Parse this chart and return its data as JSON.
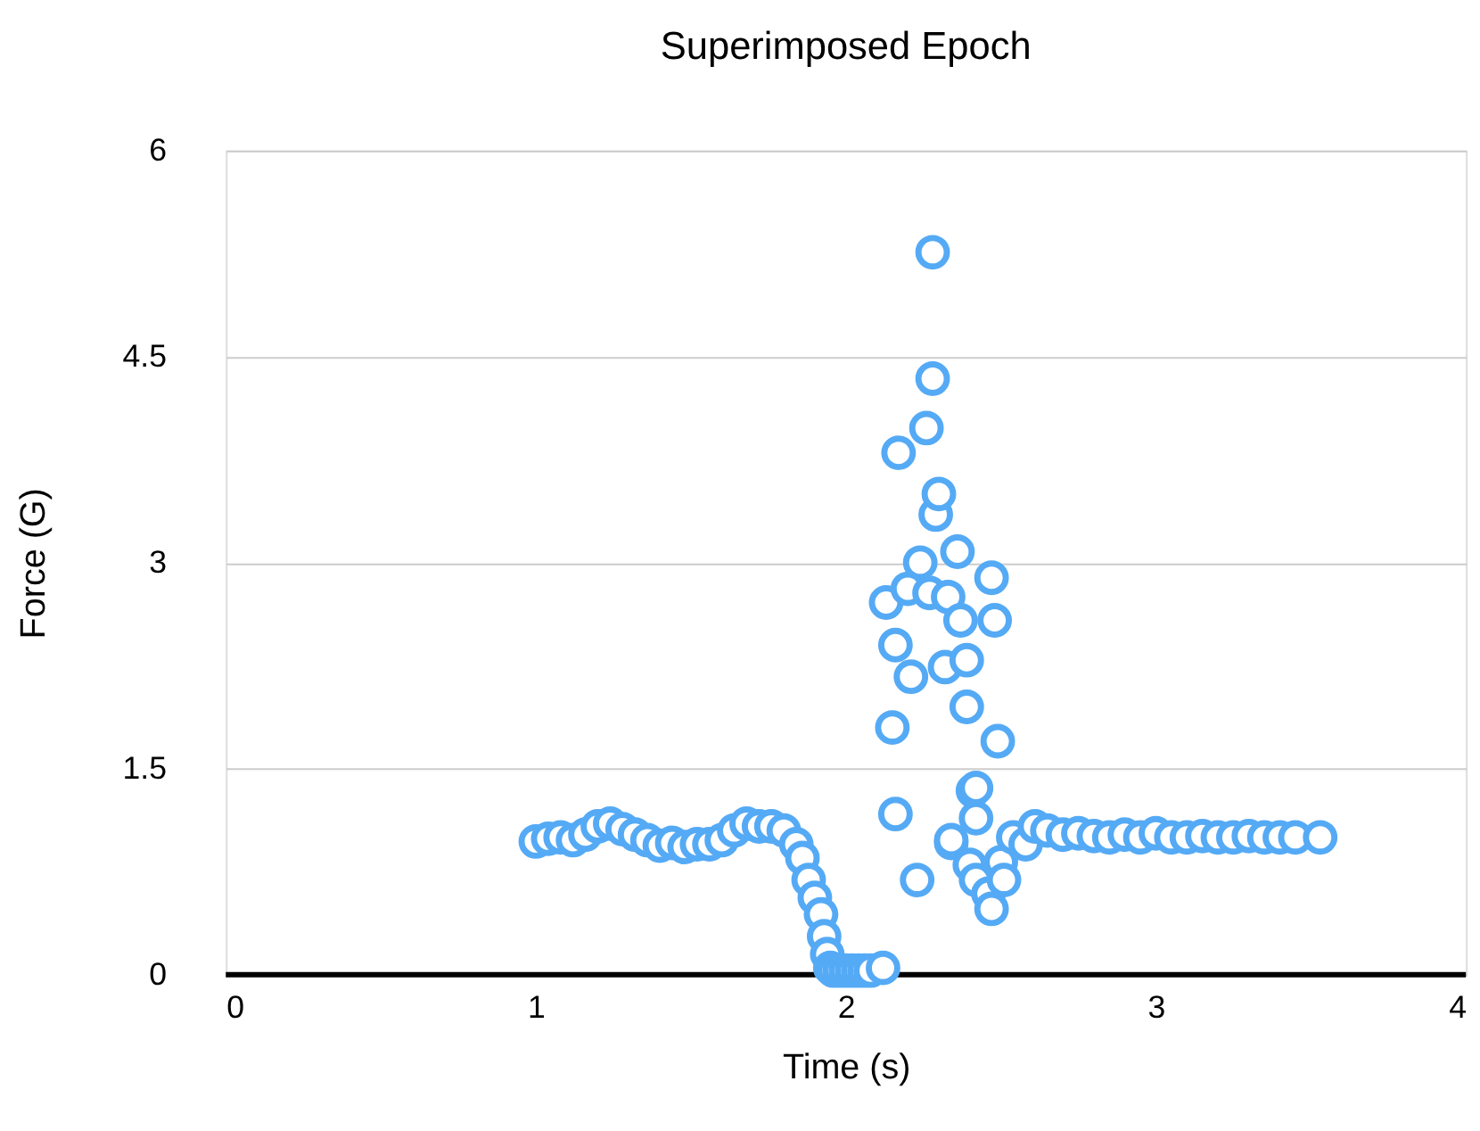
{
  "chart_data": {
    "type": "scatter",
    "title": "Superimposed Epoch",
    "xlabel": "Time (s)",
    "ylabel": "Force (G)",
    "xlim": [
      0,
      4
    ],
    "xticks": [
      0,
      1,
      2,
      3,
      4
    ],
    "ylim": [
      0,
      6
    ],
    "yticks": [
      0,
      1.5,
      3,
      4.5,
      6
    ],
    "grid": "y",
    "marker": "circle",
    "series": [
      {
        "color": "#55aaf5",
        "x": [
          1.0,
          1.04,
          1.08,
          1.12,
          1.16,
          1.2,
          1.24,
          1.28,
          1.32,
          1.36,
          1.4,
          1.44,
          1.48,
          1.52,
          1.56,
          1.6,
          1.64,
          1.68,
          1.72,
          1.76,
          1.8,
          1.84,
          1.86,
          1.88,
          1.9,
          1.92,
          1.93,
          1.94,
          1.95,
          1.96,
          1.98,
          2.0,
          2.02,
          2.04,
          2.06,
          2.08,
          2.12,
          2.13,
          2.15,
          2.16,
          2.16,
          2.17,
          2.2,
          2.21,
          2.23,
          2.24,
          2.26,
          2.27,
          2.28,
          2.28,
          2.29,
          2.3,
          2.32,
          2.33,
          2.34,
          2.34,
          2.36,
          2.37,
          2.39,
          2.39,
          2.4,
          2.41,
          2.42,
          2.42,
          2.42,
          2.46,
          2.47,
          2.47,
          2.48,
          2.49,
          2.5,
          2.51,
          2.54,
          2.58,
          2.61,
          2.65,
          2.7,
          2.75,
          2.8,
          2.85,
          2.9,
          2.95,
          3.0,
          3.05,
          3.1,
          3.15,
          3.2,
          3.25,
          3.3,
          3.35,
          3.4,
          3.45,
          3.53
        ],
        "values": [
          0.97,
          0.99,
          1.0,
          0.98,
          1.02,
          1.08,
          1.1,
          1.06,
          1.02,
          0.98,
          0.94,
          0.96,
          0.93,
          0.95,
          0.95,
          0.98,
          1.05,
          1.1,
          1.08,
          1.08,
          1.05,
          0.95,
          0.85,
          0.69,
          0.56,
          0.44,
          0.28,
          0.15,
          0.05,
          0.03,
          0.03,
          0.03,
          0.03,
          0.03,
          0.03,
          0.03,
          0.05,
          2.71,
          1.8,
          2.4,
          1.17,
          3.8,
          2.81,
          2.17,
          0.69,
          3.0,
          3.98,
          2.78,
          5.26,
          4.34,
          3.35,
          3.5,
          2.24,
          2.75,
          0.96,
          0.98,
          3.08,
          2.58,
          2.29,
          1.95,
          0.8,
          1.34,
          1.14,
          1.36,
          0.69,
          0.59,
          2.89,
          0.48,
          2.58,
          1.7,
          0.82,
          0.69,
          1.0,
          0.95,
          1.08,
          1.05,
          1.02,
          1.03,
          1.01,
          1.0,
          1.02,
          1.0,
          1.03,
          1.0,
          1.0,
          1.01,
          1.0,
          1.0,
          1.01,
          1.0,
          1.0,
          1.0,
          1.0
        ]
      }
    ]
  }
}
